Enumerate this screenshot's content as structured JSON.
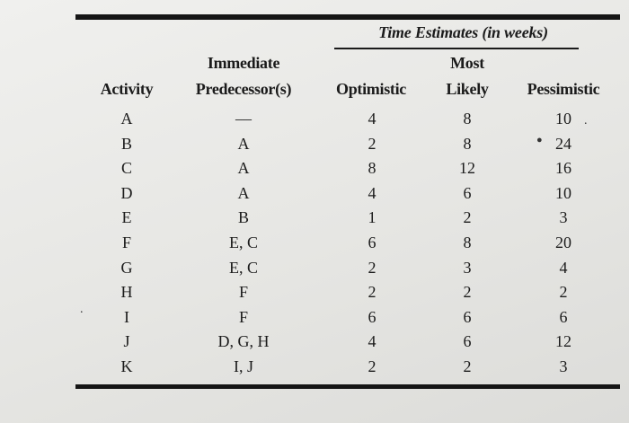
{
  "table": {
    "group_header": "Time Estimates (in weeks)",
    "headers": {
      "activity": "Activity",
      "predecessor_line1": "Immediate",
      "predecessor_line2": "Predecessor(s)",
      "optimistic": "Optimistic",
      "most_likely_line1": "Most",
      "most_likely_line2": "Likely",
      "pessimistic": "Pessimistic"
    },
    "rows": [
      {
        "activity": "A",
        "predecessors": "—",
        "optimistic": "4",
        "most_likely": "8",
        "pessimistic": "10"
      },
      {
        "activity": "B",
        "predecessors": "A",
        "optimistic": "2",
        "most_likely": "8",
        "pessimistic": "24"
      },
      {
        "activity": "C",
        "predecessors": "A",
        "optimistic": "8",
        "most_likely": "12",
        "pessimistic": "16"
      },
      {
        "activity": "D",
        "predecessors": "A",
        "optimistic": "4",
        "most_likely": "6",
        "pessimistic": "10"
      },
      {
        "activity": "E",
        "predecessors": "B",
        "optimistic": "1",
        "most_likely": "2",
        "pessimistic": "3"
      },
      {
        "activity": "F",
        "predecessors": "E, C",
        "optimistic": "6",
        "most_likely": "8",
        "pessimistic": "20"
      },
      {
        "activity": "G",
        "predecessors": "E, C",
        "optimistic": "2",
        "most_likely": "3",
        "pessimistic": "4"
      },
      {
        "activity": "H",
        "predecessors": "F",
        "optimistic": "2",
        "most_likely": "2",
        "pessimistic": "2"
      },
      {
        "activity": "I",
        "predecessors": "F",
        "optimistic": "6",
        "most_likely": "6",
        "pessimistic": "6"
      },
      {
        "activity": "J",
        "predecessors": "D, G, H",
        "optimistic": "4",
        "most_likely": "6",
        "pessimistic": "12"
      },
      {
        "activity": "K",
        "predecessors": "I, J",
        "optimistic": "2",
        "most_likely": "2",
        "pessimistic": "3"
      }
    ]
  }
}
